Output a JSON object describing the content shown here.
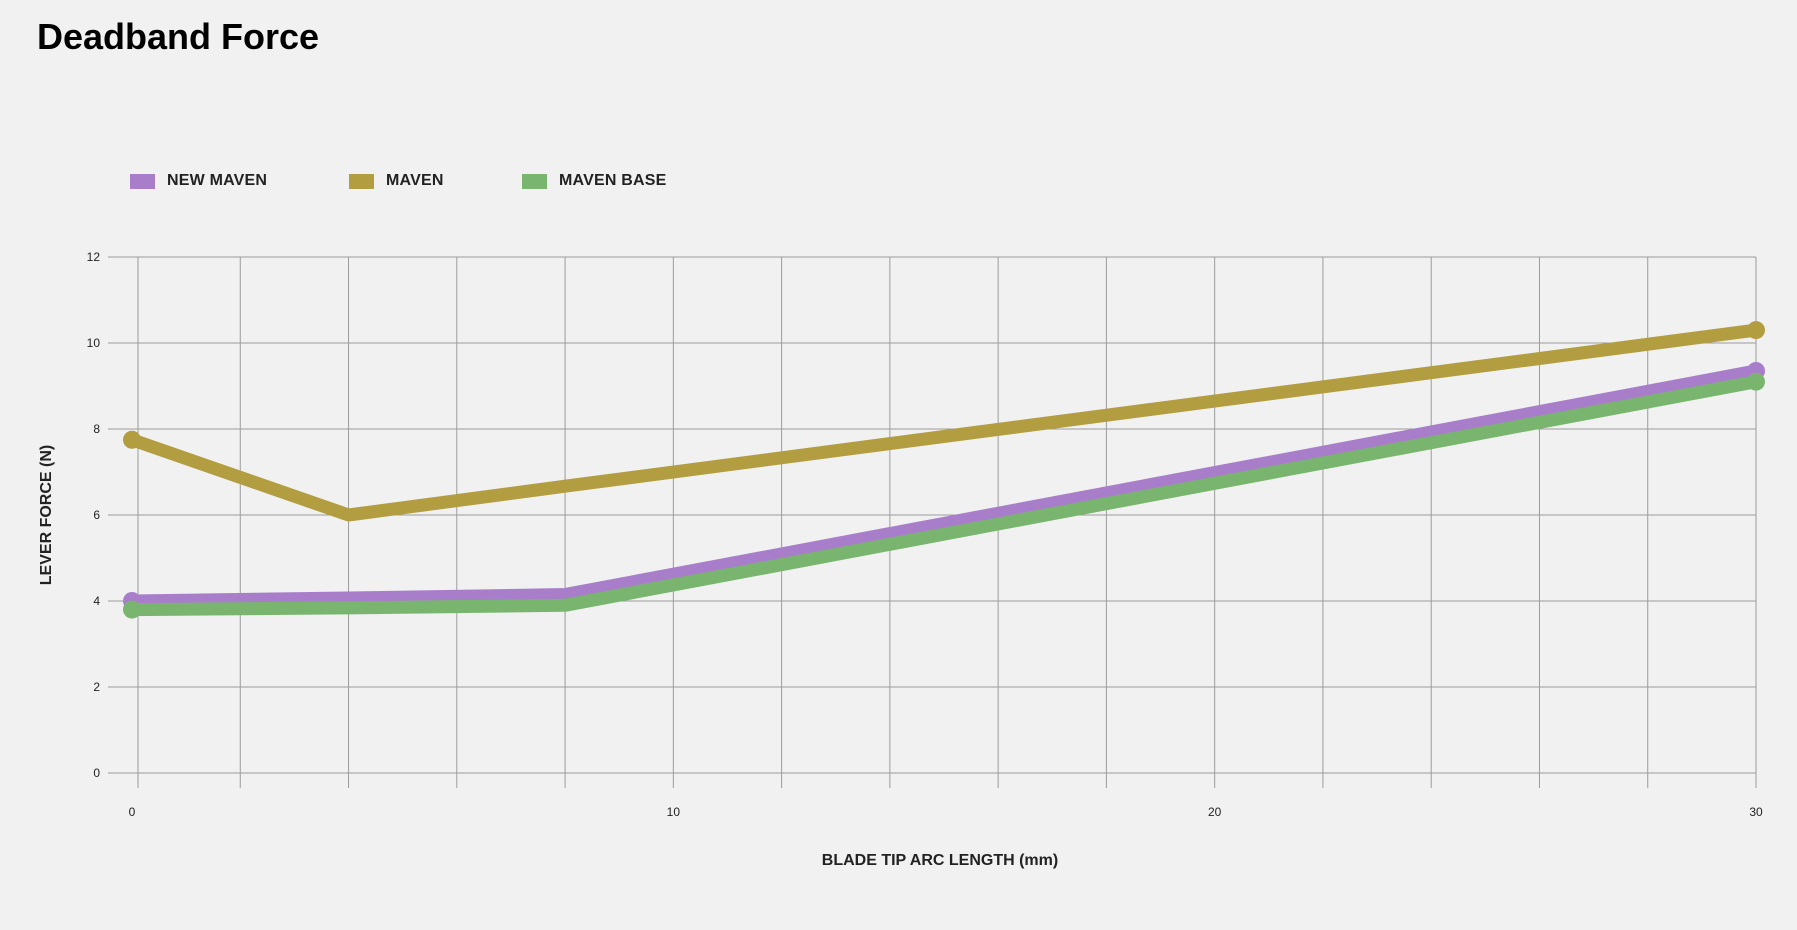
{
  "page": {
    "title": "Deadband Force"
  },
  "chart_data": {
    "type": "line",
    "title": "Deadband Force",
    "xlabel": "BLADE TIP ARC LENGTH (mm)",
    "ylabel": "LEVER FORCE (N)",
    "xlim": [
      0,
      30
    ],
    "ylim": [
      0,
      12
    ],
    "x_ticks": [
      0,
      10,
      20,
      30
    ],
    "y_ticks": [
      0,
      2,
      4,
      6,
      8,
      10,
      12
    ],
    "vertical_grid_step": 2,
    "grid": true,
    "legend_position": "top-left",
    "series": [
      {
        "name": "NEW MAVEN",
        "color": "#a87ecb",
        "x": [
          0,
          4,
          8,
          30
        ],
        "y": [
          4.0,
          4.07,
          4.15,
          9.35
        ]
      },
      {
        "name": "MAVEN",
        "color": "#b29d40",
        "x": [
          0,
          4,
          8,
          30
        ],
        "y": [
          7.75,
          6.0,
          6.67,
          10.3
        ]
      },
      {
        "name": "MAVEN BASE",
        "color": "#7ab56f",
        "x": [
          0,
          4,
          8,
          30
        ],
        "y": [
          3.8,
          3.84,
          3.9,
          9.1
        ]
      }
    ]
  }
}
